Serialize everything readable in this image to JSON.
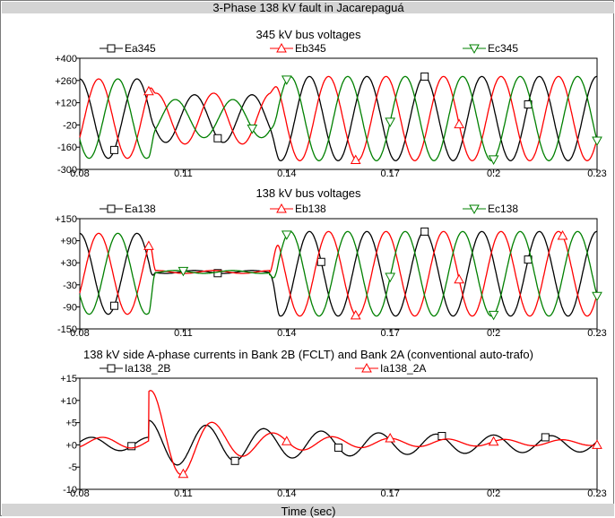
{
  "title": "3-Phase 138 kV fault in Jacarepaguá",
  "xlabel": "Time (sec)",
  "colors": {
    "phase_a": "#000000",
    "phase_b": "#ff0000",
    "phase_c": "#008000",
    "header_bg": "#d4d4d4"
  },
  "chart_data": [
    {
      "type": "line",
      "title": "345 kV bus voltages",
      "xlim": [
        0.08,
        0.23
      ],
      "ylim": [
        -300,
        400
      ],
      "xticks": [
        "0.08",
        "0.11",
        "0.14",
        "0.17",
        "0.2",
        "0.23"
      ],
      "yticks": [
        "+400",
        "+260",
        "+120",
        "-20",
        "-160",
        "-300"
      ],
      "legend_placement": "top",
      "series": [
        {
          "name": "Ea345",
          "color": "#000000",
          "marker": "square"
        },
        {
          "name": "Eb345",
          "color": "#ff0000",
          "marker": "triangle-up"
        },
        {
          "name": "Ec345",
          "color": "#008000",
          "marker": "triangle-down"
        }
      ],
      "waveform": {
        "frequency_hz": 60,
        "pre_fault_peak": 250,
        "fault_start": 0.1,
        "fault_end": 0.135,
        "fault_peaks": [
          150,
          160,
          120
        ],
        "post_fault_peak": 265,
        "dc_offset": 20
      }
    },
    {
      "type": "line",
      "title": "138  kV bus voltages",
      "xlim": [
        0.08,
        0.23
      ],
      "ylim": [
        -150,
        150
      ],
      "xticks": [
        "0.08",
        "0.11",
        "0.14",
        "0.17",
        "0.2",
        "0.23"
      ],
      "yticks": [
        "+150",
        "+90",
        "+30",
        "-30",
        "-90",
        "-150"
      ],
      "legend_placement": "top",
      "series": [
        {
          "name": "Ea138",
          "color": "#000000",
          "marker": "square"
        },
        {
          "name": "Eb138",
          "color": "#ff0000",
          "marker": "triangle-up"
        },
        {
          "name": "Ec138",
          "color": "#008000",
          "marker": "triangle-down"
        }
      ],
      "waveform": {
        "frequency_hz": 60,
        "pre_fault_peak": 110,
        "fault_start": 0.1,
        "fault_end": 0.135,
        "fault_peaks": [
          4,
          4,
          4
        ],
        "fault_offset": 5,
        "post_fault_peak": 115,
        "dc_offset": 0
      }
    },
    {
      "type": "line",
      "title": "138 kV side A-phase currents in Bank 2B (FCLT) and Bank 2A (conventional auto-trafo)",
      "xlim": [
        0.08,
        0.23
      ],
      "ylim": [
        -10,
        15
      ],
      "xticks": [
        "0.08",
        "0.11",
        "0.14",
        "0.17",
        "0.2",
        "0.23"
      ],
      "yticks": [
        "+15",
        "+10",
        "+5",
        "+0",
        "-5",
        "-10"
      ],
      "legend_placement": "top",
      "series": [
        {
          "name": "Ia138_2B",
          "color": "#000000",
          "marker": "square"
        },
        {
          "name": "Ia138_2A",
          "color": "#ff0000",
          "marker": "triangle-up"
        }
      ],
      "waveform": {
        "frequency_hz": 60,
        "peak_2B": 12,
        "peak_2A": 12.5
      }
    }
  ]
}
